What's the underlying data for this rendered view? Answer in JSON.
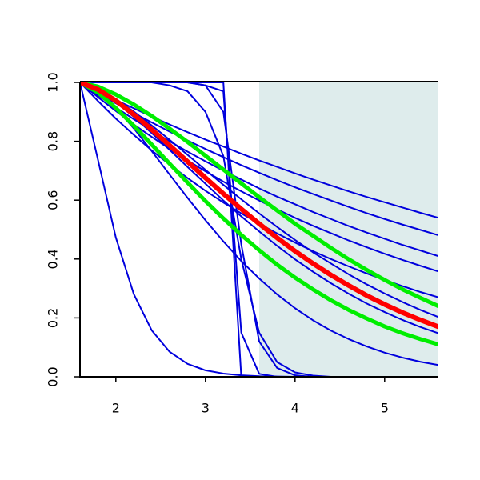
{
  "chart_data": {
    "type": "line",
    "xlim": [
      1.6,
      5.6
    ],
    "ylim": [
      0,
      1
    ],
    "xticks": [
      2,
      3,
      4,
      5
    ],
    "yticks": [
      {
        "value": 0,
        "label": "0.0"
      },
      0.2,
      0.4,
      0.6,
      0.8,
      {
        "value": 1,
        "label": "1.0"
      }
    ],
    "shaded_x": [
      3.6,
      5.6
    ],
    "shade_color": "#deecec",
    "x": [
      1.6,
      1.8,
      2.0,
      2.2,
      2.4,
      2.6,
      2.8,
      3.0,
      3.2,
      3.4,
      3.6,
      3.8,
      4.0,
      4.2,
      4.4,
      4.6,
      4.8,
      5.0,
      5.2,
      5.4,
      5.6
    ],
    "series": [
      {
        "color": "#0000dd",
        "width": 2,
        "values": [
          1,
          0.97,
          0.94,
          0.912,
          0.884,
          0.857,
          0.831,
          0.806,
          0.782,
          0.758,
          0.735,
          0.713,
          0.691,
          0.67,
          0.65,
          0.63,
          0.611,
          0.593,
          0.575,
          0.557,
          0.54
        ]
      },
      {
        "color": "#0000dd",
        "width": 2,
        "values": [
          1,
          0.964,
          0.929,
          0.896,
          0.864,
          0.833,
          0.803,
          0.774,
          0.746,
          0.719,
          0.693,
          0.668,
          0.644,
          0.621,
          0.599,
          0.577,
          0.556,
          0.536,
          0.517,
          0.499,
          0.481
        ]
      },
      {
        "color": "#0000dd",
        "width": 2,
        "values": [
          1,
          0.956,
          0.915,
          0.875,
          0.837,
          0.8,
          0.765,
          0.732,
          0.7,
          0.67,
          0.64,
          0.612,
          0.586,
          0.56,
          0.536,
          0.512,
          0.49,
          0.469,
          0.448,
          0.429,
          0.41
        ]
      },
      {
        "color": "#0000dd",
        "width": 2,
        "values": [
          1,
          0.95,
          0.903,
          0.857,
          0.815,
          0.774,
          0.735,
          0.698,
          0.663,
          0.63,
          0.599,
          0.569,
          0.54,
          0.513,
          0.488,
          0.463,
          0.44,
          0.418,
          0.397,
          0.377,
          0.358
        ]
      },
      {
        "color": "#0000dd",
        "width": 2,
        "values": [
          1,
          0.937,
          0.877,
          0.822,
          0.769,
          0.721,
          0.675,
          0.632,
          0.592,
          0.555,
          0.52,
          0.487,
          0.456,
          0.427,
          0.4,
          0.375,
          0.351,
          0.329,
          0.308,
          0.288,
          0.27
        ]
      },
      {
        "color": "#0000dd",
        "width": 2,
        "values": [
          1,
          0.979,
          0.944,
          0.901,
          0.854,
          0.805,
          0.754,
          0.703,
          0.652,
          0.603,
          0.555,
          0.509,
          0.465,
          0.423,
          0.385,
          0.348,
          0.314,
          0.283,
          0.254,
          0.227,
          0.203
        ]
      },
      {
        "color": "#0000dd",
        "width": 2,
        "values": [
          1,
          0.975,
          0.933,
          0.883,
          0.828,
          0.771,
          0.713,
          0.656,
          0.599,
          0.545,
          0.494,
          0.445,
          0.399,
          0.357,
          0.318,
          0.282,
          0.249,
          0.22,
          0.193,
          0.169,
          0.148
        ]
      },
      {
        "color": "#0000dd",
        "width": 2,
        "values": [
          1,
          0.97,
          0.913,
          0.844,
          0.767,
          0.687,
          0.608,
          0.532,
          0.46,
          0.393,
          0.334,
          0.28,
          0.233,
          0.192,
          0.157,
          0.128,
          0.103,
          0.082,
          0.065,
          0.051,
          0.04
        ]
      },
      {
        "color": "#0000dd",
        "width": 2,
        "values": [
          1,
          0.738,
          0.473,
          0.281,
          0.158,
          0.085,
          0.044,
          0.022,
          0.011,
          0.005,
          0.002,
          0.001,
          0,
          0,
          0,
          0,
          0,
          0,
          0,
          0,
          0
        ]
      },
      {
        "color": "#0000dd",
        "width": 2,
        "values": [
          1,
          1,
          1,
          1,
          1,
          1,
          1,
          1,
          1,
          0,
          0,
          0,
          0,
          0,
          0,
          0,
          0,
          0,
          0,
          0,
          0
        ]
      },
      {
        "color": "#0000dd",
        "width": 2,
        "values": [
          1,
          1,
          1,
          1,
          1,
          1,
          1,
          0.99,
          0.97,
          0.15,
          0.01,
          0,
          0,
          0,
          0,
          0,
          0,
          0,
          0,
          0,
          0
        ]
      },
      {
        "color": "#0000dd",
        "width": 2,
        "values": [
          1,
          1,
          1,
          1,
          1,
          1,
          1,
          0.99,
          0.9,
          0.45,
          0.12,
          0.03,
          0.005,
          0,
          0,
          0,
          0,
          0,
          0,
          0,
          0
        ]
      },
      {
        "color": "#0000dd",
        "width": 2,
        "values": [
          1,
          1,
          1,
          1,
          1,
          0.99,
          0.97,
          0.9,
          0.75,
          0.4,
          0.15,
          0.05,
          0.015,
          0.004,
          0,
          0,
          0,
          0,
          0,
          0,
          0
        ]
      },
      {
        "color": "#00ee00",
        "width": 5,
        "values": [
          1,
          0.986,
          0.959,
          0.925,
          0.886,
          0.843,
          0.798,
          0.751,
          0.704,
          0.657,
          0.61,
          0.565,
          0.52,
          0.479,
          0.438,
          0.399,
          0.363,
          0.329,
          0.297,
          0.268,
          0.24
        ]
      },
      {
        "color": "#00ee00",
        "width": 5,
        "values": [
          1,
          0.966,
          0.913,
          0.853,
          0.789,
          0.724,
          0.66,
          0.597,
          0.538,
          0.482,
          0.43,
          0.381,
          0.337,
          0.297,
          0.26,
          0.227,
          0.198,
          0.171,
          0.148,
          0.128,
          0.11
        ]
      },
      {
        "color": "#ff0000",
        "width": 6,
        "values": [
          1,
          0.976,
          0.938,
          0.891,
          0.84,
          0.786,
          0.731,
          0.676,
          0.622,
          0.57,
          0.52,
          0.472,
          0.427,
          0.385,
          0.346,
          0.31,
          0.276,
          0.246,
          0.218,
          0.193,
          0.17
        ]
      }
    ]
  }
}
